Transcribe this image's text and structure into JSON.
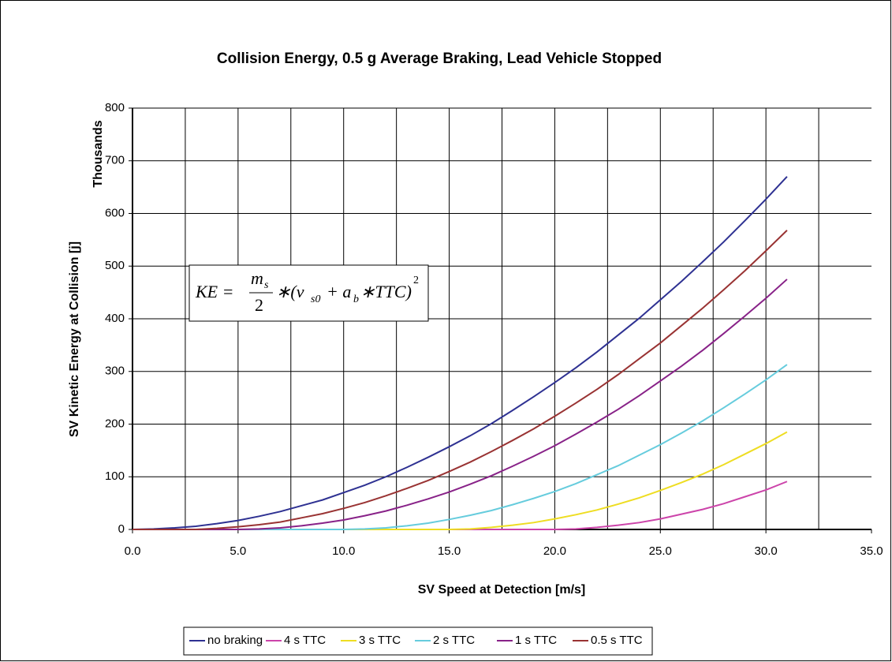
{
  "chart_data": {
    "type": "line",
    "title": "Collision Energy, 0.5 g Average Braking, Lead Vehicle Stopped",
    "xlabel": "SV Speed at Detection [m/s]",
    "ylabel": "SV Kinetic Energy at Collision [j]",
    "yunit_label": "Thousands",
    "formula": {
      "lhs": "KE =",
      "num": "m",
      "num_sub": "s",
      "den": "2",
      "mid": "∗(v",
      "v_sub": "s0",
      "plus": "+ a",
      "a_sub": "b",
      "tail": "∗TTC)",
      "exp": "2"
    },
    "x": [
      0,
      1,
      2,
      3,
      4,
      5,
      6,
      7,
      8,
      9,
      10,
      11,
      12,
      13,
      14,
      15,
      16,
      17,
      18,
      19,
      20,
      21,
      22,
      23,
      24,
      25,
      26,
      27,
      28,
      29,
      30,
      31
    ],
    "series": [
      {
        "name": "no braking",
        "color": "#2e3192",
        "values": [
          0,
          1,
          3,
          6,
          11,
          17,
          25,
          34,
          45,
          56,
          70,
          84,
          100,
          118,
          137,
          157,
          178,
          201,
          226,
          252,
          279,
          307,
          337,
          369,
          401,
          436,
          471,
          508,
          546,
          586,
          627,
          670
        ]
      },
      {
        "name": "4 s TTC",
        "color": "#cc44aa",
        "values": [
          0,
          0,
          0,
          0,
          0,
          0,
          0,
          0,
          0,
          0,
          0,
          0,
          0,
          0,
          0,
          0,
          0,
          0,
          0,
          0,
          0,
          1,
          4,
          8,
          13,
          20,
          29,
          38,
          49,
          62,
          75,
          91
        ]
      },
      {
        "name": "3 s TTC",
        "color": "#eedd22",
        "values": [
          0,
          0,
          0,
          0,
          0,
          0,
          0,
          0,
          0,
          0,
          0,
          0,
          0,
          0,
          0,
          0,
          1,
          4,
          8,
          13,
          20,
          28,
          37,
          48,
          60,
          74,
          89,
          105,
          123,
          143,
          163,
          185
        ]
      },
      {
        "name": "2 s TTC",
        "color": "#66ccdd",
        "values": [
          0,
          0,
          0,
          0,
          0,
          0,
          0,
          0,
          0,
          0,
          0,
          1,
          3,
          7,
          12,
          19,
          27,
          36,
          47,
          59,
          72,
          87,
          104,
          121,
          141,
          161,
          183,
          206,
          231,
          257,
          284,
          313
        ]
      },
      {
        "name": "1 s TTC",
        "color": "#882288",
        "values": [
          0,
          0,
          0,
          0,
          0,
          0,
          1,
          3,
          7,
          12,
          18,
          26,
          35,
          46,
          58,
          71,
          86,
          102,
          120,
          139,
          159,
          181,
          204,
          228,
          254,
          282,
          310,
          340,
          372,
          405,
          439,
          475
        ]
      },
      {
        "name": "0.5 s TTC",
        "color": "#993333",
        "values": [
          0,
          0,
          0,
          0,
          2,
          5,
          9,
          14,
          22,
          30,
          40,
          51,
          64,
          78,
          93,
          110,
          128,
          148,
          169,
          191,
          215,
          240,
          266,
          294,
          324,
          354,
          387,
          420,
          455,
          491,
          529,
          568
        ]
      }
    ],
    "xlim": [
      0,
      35
    ],
    "ylim": [
      0,
      800
    ],
    "xticks": [
      {
        "value": 0,
        "label": "0.0"
      },
      {
        "value": 5,
        "label": "5.0"
      },
      {
        "value": 10,
        "label": "10.0"
      },
      {
        "value": 15,
        "label": "15.0"
      },
      {
        "value": 20,
        "label": "20.0"
      },
      {
        "value": 25,
        "label": "25.0"
      },
      {
        "value": 30,
        "label": "30.0"
      },
      {
        "value": 35,
        "label": "35.0"
      }
    ],
    "xgrid": [
      2.5,
      5,
      7.5,
      10,
      12.5,
      15,
      17.5,
      20,
      22.5,
      25,
      27.5,
      30,
      32.5
    ],
    "yticks": [
      0,
      100,
      200,
      300,
      400,
      500,
      600,
      700,
      800
    ],
    "grid": true,
    "legend": "bottom"
  }
}
